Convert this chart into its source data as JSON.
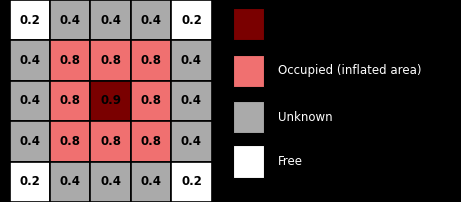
{
  "grid": [
    [
      0.2,
      0.4,
      0.4,
      0.4,
      0.2
    ],
    [
      0.4,
      0.8,
      0.8,
      0.8,
      0.4
    ],
    [
      0.4,
      0.8,
      0.9,
      0.8,
      0.4
    ],
    [
      0.4,
      0.8,
      0.8,
      0.8,
      0.4
    ],
    [
      0.2,
      0.4,
      0.4,
      0.4,
      0.2
    ]
  ],
  "cell_colors": [
    [
      "#ffffff",
      "#aaaaaa",
      "#aaaaaa",
      "#aaaaaa",
      "#ffffff"
    ],
    [
      "#aaaaaa",
      "#f07070",
      "#f07070",
      "#f07070",
      "#aaaaaa"
    ],
    [
      "#aaaaaa",
      "#f07070",
      "#7a0000",
      "#f07070",
      "#aaaaaa"
    ],
    [
      "#aaaaaa",
      "#f07070",
      "#f07070",
      "#f07070",
      "#aaaaaa"
    ],
    [
      "#ffffff",
      "#aaaaaa",
      "#aaaaaa",
      "#aaaaaa",
      "#ffffff"
    ]
  ],
  "legend_items": [
    {
      "label": "",
      "color": "#7a0000"
    },
    {
      "label": "Occupied (inflated area)",
      "color": "#f07070"
    },
    {
      "label": "Unknown",
      "color": "#aaaaaa"
    },
    {
      "label": "Free",
      "color": "#ffffff"
    }
  ],
  "background_color": "#000000",
  "font_size": 8.5,
  "grid_color": "#000000",
  "text_color": "#000000",
  "figsize": [
    4.61,
    2.02
  ],
  "dpi": 100
}
